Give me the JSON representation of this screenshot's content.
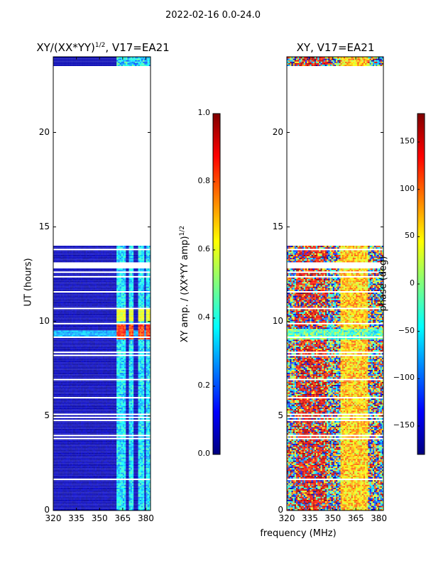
{
  "suptitle": "2022-02-16 0.0-24.0",
  "colors": {
    "empty": "#ffffff",
    "low": "#00008b",
    "jet_stops": [
      "#00007f",
      "#0000ff",
      "#007fff",
      "#00ffff",
      "#7fff7f",
      "#ffff00",
      "#ff7f00",
      "#ff0000",
      "#7f0000"
    ]
  },
  "chart_data": [
    {
      "type": "heatmap",
      "name": "amplitude-ratio",
      "title_main": "XY/(XX*YY)",
      "title_sup": "1/2",
      "title_tail": ", V17=EA21",
      "xlabel": "",
      "ylabel": "UT (hours)",
      "xlim": [
        320,
        383
      ],
      "ylim": [
        0,
        24
      ],
      "xticks": [
        320,
        335,
        350,
        365,
        380
      ],
      "yticks": [
        0,
        5,
        10,
        15,
        20
      ],
      "data_coverage_hours": [
        [
          0,
          14.0
        ],
        [
          23.5,
          24
        ]
      ],
      "colorbar": {
        "label_main": "XY amp. / (XX*YY amp)",
        "label_sup": "1/2",
        "range": [
          0.0,
          1.0
        ],
        "ticks": [
          "0.0",
          "0.2",
          "0.4",
          "0.6",
          "0.8",
          "1.0"
        ]
      }
    },
    {
      "type": "heatmap",
      "name": "phase",
      "title": "XY, V17=EA21",
      "xlabel": "frequency (MHz)",
      "ylabel": "",
      "xlim": [
        320,
        383
      ],
      "ylim": [
        0,
        24
      ],
      "xticks": [
        320,
        335,
        350,
        365,
        380
      ],
      "yticks": [
        0,
        5,
        10,
        15,
        20
      ],
      "data_coverage_hours": [
        [
          0,
          14.0
        ],
        [
          23.5,
          24
        ]
      ],
      "colorbar": {
        "label": "phase (deg)",
        "range": [
          -180,
          180
        ],
        "ticks": [
          "-150",
          "-100",
          "-50",
          "0",
          "50",
          "100",
          "150"
        ]
      }
    }
  ]
}
